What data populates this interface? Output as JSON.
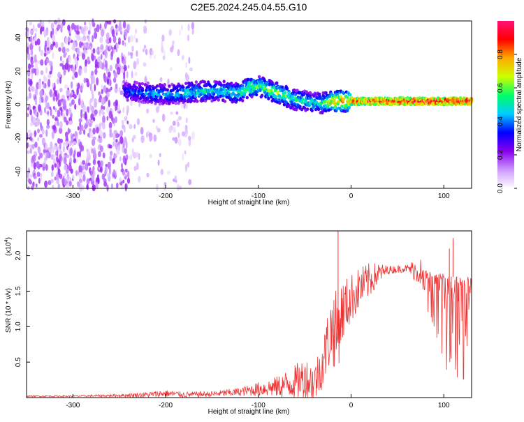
{
  "title": "C2E5.2024.245.04.55.G10",
  "chart_data": [
    {
      "type": "heatmap",
      "panel": "spectrogram",
      "xlabel": "Height of straight line (km)",
      "ylabel": "Frequency (Hz)",
      "xlim": [
        -350,
        130
      ],
      "ylim": [
        -50,
        50
      ],
      "x_ticks": [
        -300,
        -200,
        -100,
        0,
        100
      ],
      "x_tick_labels": [
        "-300",
        "-200",
        "-100",
        "0",
        "100"
      ],
      "y_ticks": [
        -40,
        -20,
        0,
        20,
        40
      ],
      "y_tick_labels": [
        "-40",
        "-20",
        "0",
        "20",
        "40"
      ],
      "colorbar": {
        "label": "Normalized spectral amplitude",
        "range": [
          0,
          1
        ],
        "ticks": [
          0.0,
          0.2,
          0.4,
          0.6,
          0.8
        ],
        "tick_labels": [
          "0.0",
          "0.2",
          "0.4",
          "0.6",
          "0.8"
        ],
        "colors": [
          "#ffffff",
          "#cc99ff",
          "#8800ee",
          "#0000ff",
          "#00ccff",
          "#00ff66",
          "#ccff00",
          "#ffaa00",
          "#ff0000",
          "#ff1177"
        ]
      },
      "ridge": {
        "x": [
          -245,
          -220,
          -200,
          -180,
          -160,
          -140,
          -120,
          -110,
          -100,
          -90,
          -80,
          -70,
          -60,
          -50,
          -40,
          -30,
          -20,
          -10,
          0,
          20,
          40,
          60,
          80,
          100,
          130
        ],
        "freq_hz": [
          8,
          7,
          6,
          7,
          8,
          8,
          7,
          10,
          11,
          9,
          7,
          5,
          3,
          2,
          1,
          1,
          2,
          2,
          2,
          2,
          2,
          2,
          2,
          2,
          2
        ],
        "amplitude": [
          0.35,
          0.45,
          0.45,
          0.5,
          0.5,
          0.5,
          0.55,
          0.6,
          0.6,
          0.6,
          0.62,
          0.6,
          0.55,
          0.55,
          0.5,
          0.55,
          0.75,
          0.8,
          0.85,
          0.9,
          0.92,
          0.95,
          0.95,
          0.95,
          0.95
        ]
      },
      "noise_region": {
        "x_range": [
          -350,
          -170
        ],
        "freq_range": [
          -50,
          50
        ],
        "amplitude": 0.15
      }
    },
    {
      "type": "line",
      "panel": "snr",
      "xlabel": "Height of straight line (km)",
      "ylabel": "SNR (10 * v/v)",
      "y_scale_label": "(x10",
      "y_scale_exp": "4",
      "xlim": [
        -350,
        130
      ],
      "ylim": [
        0,
        2.35
      ],
      "x_ticks": [
        -300,
        -200,
        -100,
        0,
        100
      ],
      "x_tick_labels": [
        "-300",
        "-200",
        "-100",
        "0",
        "100"
      ],
      "y_ticks": [
        0.5,
        1.0,
        1.5,
        2.0
      ],
      "y_tick_labels": [
        "0.5",
        "1.0",
        "1.5",
        "2.0"
      ],
      "color": "#ee3333",
      "envelope": {
        "x": [
          -350,
          -300,
          -250,
          -220,
          -200,
          -180,
          -150,
          -120,
          -100,
          -80,
          -60,
          -50,
          -40,
          -30,
          -25,
          -20,
          -15,
          -10,
          0,
          10,
          20,
          30,
          40,
          60,
          80,
          100,
          110,
          130
        ],
        "base": [
          0.02,
          0.02,
          0.03,
          0.04,
          0.06,
          0.04,
          0.05,
          0.08,
          0.12,
          0.15,
          0.22,
          0.28,
          0.2,
          0.5,
          0.8,
          1.0,
          0.9,
          1.2,
          1.4,
          1.55,
          1.65,
          1.75,
          1.8,
          1.82,
          1.78,
          1.72,
          1.7,
          1.68
        ],
        "noise": [
          0.01,
          0.01,
          0.02,
          0.04,
          0.05,
          0.04,
          0.04,
          0.06,
          0.1,
          0.15,
          0.25,
          0.3,
          0.3,
          0.35,
          0.45,
          0.55,
          0.6,
          0.45,
          0.35,
          0.3,
          0.25,
          0.15,
          0.06,
          0.05,
          0.3,
          0.8,
          0.9,
          0.9
        ]
      },
      "spikes": [
        {
          "x": -14,
          "y": 2.35
        },
        {
          "x": 110,
          "y": 2.25
        },
        {
          "x": 106,
          "y": 2.1
        },
        {
          "x": 108,
          "y": 0.55
        }
      ]
    }
  ]
}
